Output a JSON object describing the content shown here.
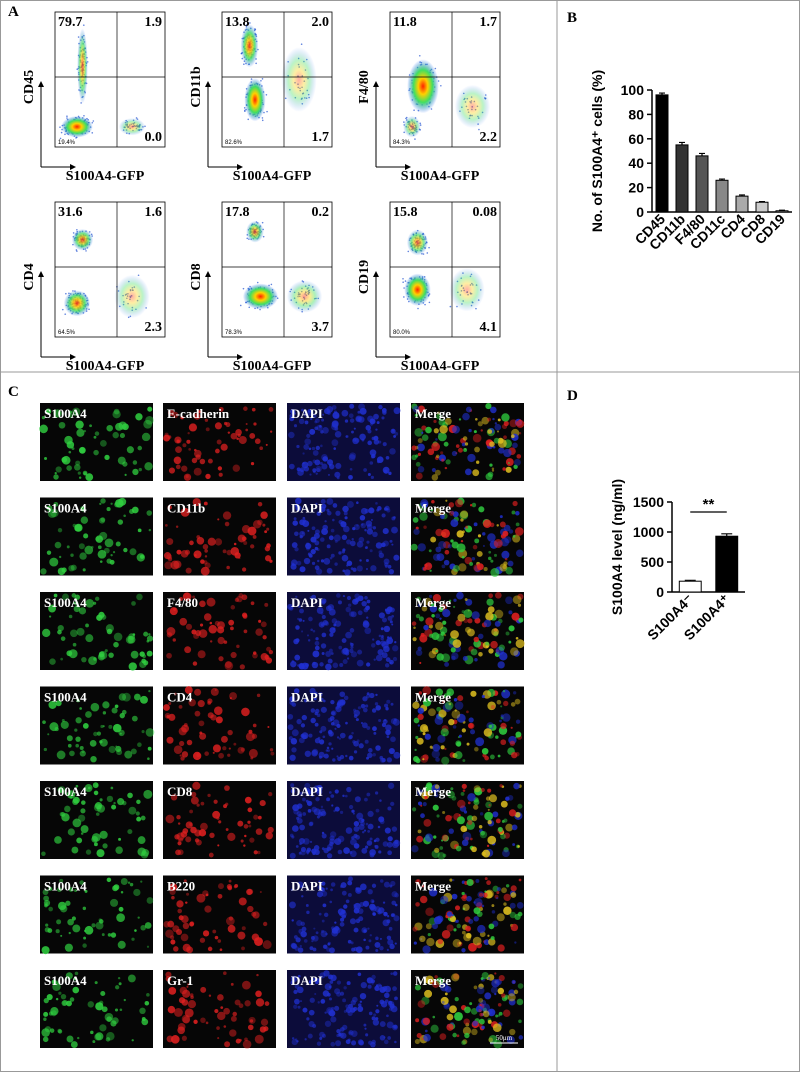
{
  "panel_labels": [
    "A",
    "B",
    "C",
    "D"
  ],
  "flow_plots": [
    {
      "y_label": "CD45",
      "x_label": "S100A4-GFP",
      "upper_left": "79.7",
      "upper_right": "1.9",
      "lower_right": "0.0",
      "lower_left": "19.4%"
    },
    {
      "y_label": "CD11b",
      "x_label": "S100A4-GFP",
      "upper_left": "13.8",
      "upper_right": "2.0",
      "lower_right": "1.7",
      "lower_left": "82.6%"
    },
    {
      "y_label": "F4/80",
      "x_label": "S100A4-GFP",
      "upper_left": "11.8",
      "upper_right": "1.7",
      "lower_right": "2.2",
      "lower_left": "84.3%"
    },
    {
      "y_label": "CD4",
      "x_label": "S100A4-GFP",
      "upper_left": "31.6",
      "upper_right": "1.6",
      "lower_right": "2.3",
      "lower_left": "64.5%"
    },
    {
      "y_label": "CD8",
      "x_label": "S100A4-GFP",
      "upper_left": "17.8",
      "upper_right": "0.2",
      "lower_right": "3.7",
      "lower_left": "78.3%"
    },
    {
      "y_label": "CD19",
      "x_label": "S100A4-GFP",
      "upper_left": "15.8",
      "upper_right": "0.08",
      "lower_right": "4.1",
      "lower_left": "80.0%"
    }
  ],
  "chart_data": [
    {
      "type": "bar",
      "ylabel": "No. of S100A4⁺ cells (%)",
      "categories": [
        "CD45",
        "CD11b",
        "F4/80",
        "CD11c",
        "CD4",
        "CD8",
        "CD19"
      ],
      "values": [
        96,
        55,
        46,
        26,
        13,
        8,
        1
      ],
      "errors": [
        1.5,
        2,
        2,
        1,
        1,
        0.5,
        0.5
      ],
      "colors": [
        "#000000",
        "#333333",
        "#555555",
        "#888888",
        "#aaaaaa",
        "#cccccc",
        "#ffffff"
      ],
      "ylim": [
        0,
        100
      ],
      "yticks": [
        0,
        20,
        40,
        60,
        80,
        100
      ]
    },
    {
      "type": "bar",
      "ylabel": "S100A4 level (ng/ml)",
      "categories": [
        "S100A4⁻",
        "S100A4⁺"
      ],
      "values": [
        180,
        930
      ],
      "errors": [
        15,
        40
      ],
      "colors": [
        "#ffffff",
        "#000000"
      ],
      "ylim": [
        0,
        1500
      ],
      "yticks": [
        0,
        500,
        1000,
        1500
      ],
      "annotation": "**"
    }
  ],
  "micrographs": {
    "rows": [
      [
        "S100A4",
        "E-cadherin",
        "DAPI",
        "Merge"
      ],
      [
        "S100A4",
        "CD11b",
        "DAPI",
        "Merge"
      ],
      [
        "S100A4",
        "F4/80",
        "DAPI",
        "Merge"
      ],
      [
        "S100A4",
        "CD4",
        "DAPI",
        "Merge"
      ],
      [
        "S100A4",
        "CD8",
        "DAPI",
        "Merge"
      ],
      [
        "S100A4",
        "B220",
        "DAPI",
        "Merge"
      ],
      [
        "S100A4",
        "Gr-1",
        "DAPI",
        "Merge"
      ]
    ],
    "scale_bar": "50μm"
  }
}
